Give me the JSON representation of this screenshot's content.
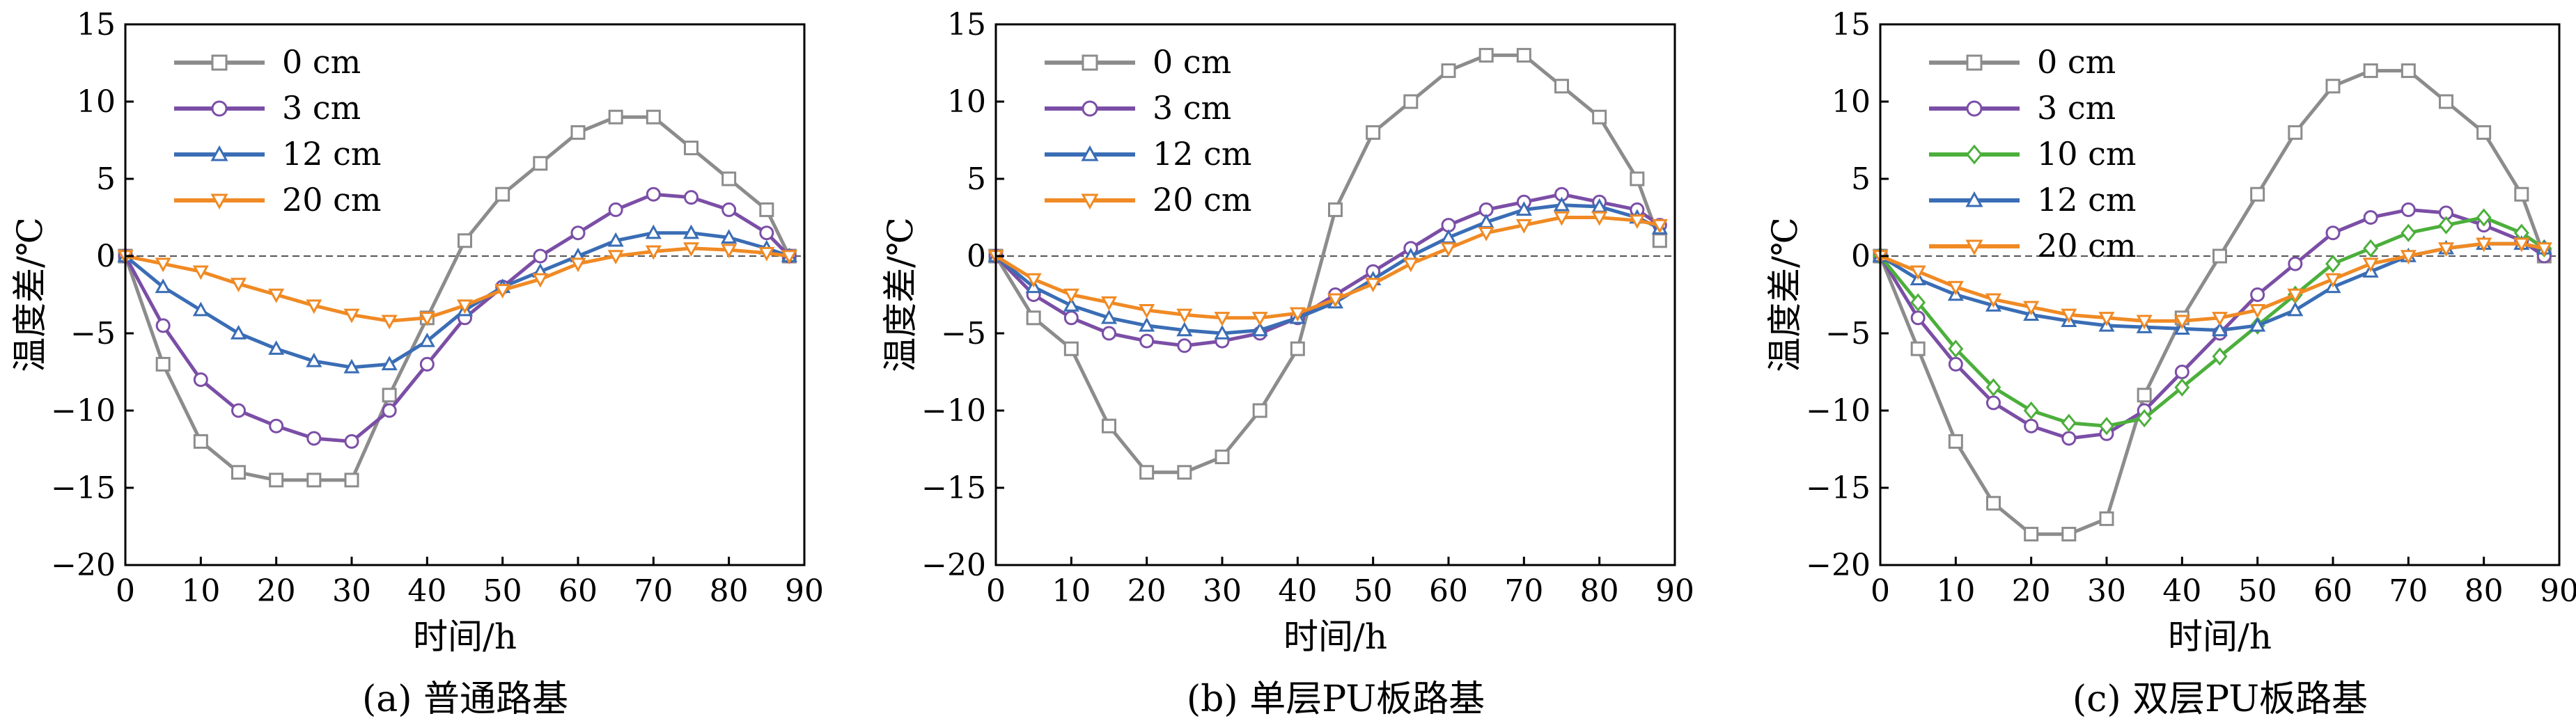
{
  "chart_data": [
    {
      "type": "line",
      "subcaption": "(a) 普通路基",
      "xlabel": "时间/h",
      "ylabel": "温度差/℃",
      "xlim": [
        0,
        90
      ],
      "ylim": [
        -20,
        15
      ],
      "xticks": [
        0,
        10,
        20,
        30,
        40,
        50,
        60,
        70,
        80,
        90
      ],
      "yticks": [
        -20,
        -15,
        -10,
        -5,
        0,
        5,
        10,
        15
      ],
      "reference_line": {
        "y": 0,
        "style": "dashed"
      },
      "legend_position": "top-left",
      "series": [
        {
          "name": "0 cm",
          "color": "#8c8c8c",
          "marker": "square",
          "x": [
            0,
            5,
            10,
            15,
            20,
            25,
            30,
            35,
            40,
            45,
            50,
            55,
            60,
            65,
            70,
            75,
            80,
            85,
            88
          ],
          "y": [
            0,
            -7,
            -12,
            -14,
            -14.5,
            -14.5,
            -14.5,
            -9,
            -4,
            1,
            4,
            6,
            8,
            9,
            9,
            7,
            5,
            3,
            0
          ]
        },
        {
          "name": "3 cm",
          "color": "#7b4ea6",
          "marker": "circle",
          "x": [
            0,
            5,
            10,
            15,
            20,
            25,
            30,
            35,
            40,
            45,
            50,
            55,
            60,
            65,
            70,
            75,
            80,
            85,
            88
          ],
          "y": [
            0,
            -4.5,
            -8,
            -10,
            -11,
            -11.8,
            -12,
            -10,
            -7,
            -4,
            -2,
            0,
            1.5,
            3,
            4,
            3.8,
            3,
            1.5,
            0
          ]
        },
        {
          "name": "12 cm",
          "color": "#3a6db5",
          "marker": "triangle-up",
          "x": [
            0,
            5,
            10,
            15,
            20,
            25,
            30,
            35,
            40,
            45,
            50,
            55,
            60,
            65,
            70,
            75,
            80,
            85,
            88
          ],
          "y": [
            0,
            -2,
            -3.5,
            -5,
            -6,
            -6.8,
            -7.2,
            -7,
            -5.5,
            -3.5,
            -2,
            -1,
            0,
            1,
            1.5,
            1.5,
            1.2,
            0.5,
            0
          ]
        },
        {
          "name": "20 cm",
          "color": "#f08a24",
          "marker": "triangle-down",
          "x": [
            0,
            5,
            10,
            15,
            20,
            25,
            30,
            35,
            40,
            45,
            50,
            55,
            60,
            65,
            70,
            75,
            80,
            85,
            88
          ],
          "y": [
            0,
            -0.5,
            -1,
            -1.8,
            -2.5,
            -3.2,
            -3.8,
            -4.2,
            -4,
            -3.2,
            -2.2,
            -1.5,
            -0.5,
            0,
            0.3,
            0.5,
            0.4,
            0.2,
            0
          ]
        }
      ]
    },
    {
      "type": "line",
      "subcaption": "(b) 单层PU板路基",
      "xlabel": "时间/h",
      "ylabel": "温度差/℃",
      "xlim": [
        0,
        90
      ],
      "ylim": [
        -20,
        15
      ],
      "xticks": [
        0,
        10,
        20,
        30,
        40,
        50,
        60,
        70,
        80,
        90
      ],
      "yticks": [
        -20,
        -15,
        -10,
        -5,
        0,
        5,
        10,
        15
      ],
      "reference_line": {
        "y": 0,
        "style": "dashed"
      },
      "legend_position": "top-left",
      "series": [
        {
          "name": "0 cm",
          "color": "#8c8c8c",
          "marker": "square",
          "x": [
            0,
            5,
            10,
            15,
            20,
            25,
            30,
            35,
            40,
            45,
            50,
            55,
            60,
            65,
            70,
            75,
            80,
            85,
            88
          ],
          "y": [
            0,
            -4,
            -6,
            -11,
            -14,
            -14,
            -13,
            -10,
            -6,
            3,
            8,
            10,
            12,
            13,
            13,
            11,
            9,
            5,
            1
          ]
        },
        {
          "name": "3 cm",
          "color": "#7b4ea6",
          "marker": "circle",
          "x": [
            0,
            5,
            10,
            15,
            20,
            25,
            30,
            35,
            40,
            45,
            50,
            55,
            60,
            65,
            70,
            75,
            80,
            85,
            88
          ],
          "y": [
            0,
            -2.5,
            -4,
            -5,
            -5.5,
            -5.8,
            -5.5,
            -5,
            -4,
            -2.5,
            -1,
            0.5,
            2,
            3,
            3.5,
            4,
            3.5,
            3,
            2
          ]
        },
        {
          "name": "12 cm",
          "color": "#3a6db5",
          "marker": "triangle-up",
          "x": [
            0,
            5,
            10,
            15,
            20,
            25,
            30,
            35,
            40,
            45,
            50,
            55,
            60,
            65,
            70,
            75,
            80,
            85,
            88
          ],
          "y": [
            0,
            -2,
            -3.2,
            -4,
            -4.5,
            -4.8,
            -5,
            -4.8,
            -4,
            -3,
            -1.5,
            0,
            1.2,
            2.2,
            3,
            3.3,
            3.2,
            2.5,
            1.8
          ]
        },
        {
          "name": "20 cm",
          "color": "#f08a24",
          "marker": "triangle-down",
          "x": [
            0,
            5,
            10,
            15,
            20,
            25,
            30,
            35,
            40,
            45,
            50,
            55,
            60,
            65,
            70,
            75,
            80,
            85,
            88
          ],
          "y": [
            0,
            -1.5,
            -2.5,
            -3,
            -3.5,
            -3.8,
            -4,
            -4,
            -3.7,
            -2.8,
            -1.8,
            -0.5,
            0.5,
            1.5,
            2,
            2.5,
            2.5,
            2.3,
            2
          ]
        }
      ]
    },
    {
      "type": "line",
      "subcaption": "(c) 双层PU板路基",
      "xlabel": "时间/h",
      "ylabel": "温度差/℃",
      "xlim": [
        0,
        90
      ],
      "ylim": [
        -20,
        15
      ],
      "xticks": [
        0,
        10,
        20,
        30,
        40,
        50,
        60,
        70,
        80,
        90
      ],
      "yticks": [
        -20,
        -15,
        -10,
        -5,
        0,
        5,
        10,
        15
      ],
      "reference_line": {
        "y": 0,
        "style": "dashed"
      },
      "legend_position": "top-left",
      "series": [
        {
          "name": "0 cm",
          "color": "#8c8c8c",
          "marker": "square",
          "x": [
            0,
            5,
            10,
            15,
            20,
            25,
            30,
            35,
            40,
            45,
            50,
            55,
            60,
            65,
            70,
            75,
            80,
            85,
            88
          ],
          "y": [
            0,
            -6,
            -12,
            -16,
            -18,
            -18,
            -17,
            -9,
            -4,
            0,
            4,
            8,
            11,
            12,
            12,
            10,
            8,
            4,
            0
          ]
        },
        {
          "name": "3 cm",
          "color": "#7b4ea6",
          "marker": "circle",
          "x": [
            0,
            5,
            10,
            15,
            20,
            25,
            30,
            35,
            40,
            45,
            50,
            55,
            60,
            65,
            70,
            75,
            80,
            85,
            88
          ],
          "y": [
            0,
            -4,
            -7,
            -9.5,
            -11,
            -11.8,
            -11.5,
            -10,
            -7.5,
            -5,
            -2.5,
            -0.5,
            1.5,
            2.5,
            3,
            2.8,
            2,
            1,
            0
          ]
        },
        {
          "name": "10 cm",
          "color": "#4caf3c",
          "marker": "diamond",
          "x": [
            0,
            5,
            10,
            15,
            20,
            25,
            30,
            35,
            40,
            45,
            50,
            55,
            60,
            65,
            70,
            75,
            80,
            85,
            88
          ],
          "y": [
            0,
            -3,
            -6,
            -8.5,
            -10,
            -10.8,
            -11,
            -10.5,
            -8.5,
            -6.5,
            -4.5,
            -2.5,
            -0.5,
            0.5,
            1.5,
            2,
            2.5,
            1.5,
            0.5
          ]
        },
        {
          "name": "12 cm",
          "color": "#3a6db5",
          "marker": "triangle-up",
          "x": [
            0,
            5,
            10,
            15,
            20,
            25,
            30,
            35,
            40,
            45,
            50,
            55,
            60,
            65,
            70,
            75,
            80,
            85,
            88
          ],
          "y": [
            0,
            -1.5,
            -2.5,
            -3.2,
            -3.8,
            -4.2,
            -4.5,
            -4.6,
            -4.7,
            -4.8,
            -4.5,
            -3.5,
            -2,
            -1,
            0,
            0.5,
            0.8,
            0.8,
            0.5
          ]
        },
        {
          "name": "20 cm",
          "color": "#f08a24",
          "marker": "triangle-down",
          "x": [
            0,
            5,
            10,
            15,
            20,
            25,
            30,
            35,
            40,
            45,
            50,
            55,
            60,
            65,
            70,
            75,
            80,
            85,
            88
          ],
          "y": [
            0,
            -1,
            -2,
            -2.8,
            -3.3,
            -3.8,
            -4,
            -4.2,
            -4.2,
            -4,
            -3.5,
            -2.5,
            -1.5,
            -0.5,
            0,
            0.5,
            0.8,
            0.8,
            0.5
          ]
        }
      ]
    }
  ]
}
